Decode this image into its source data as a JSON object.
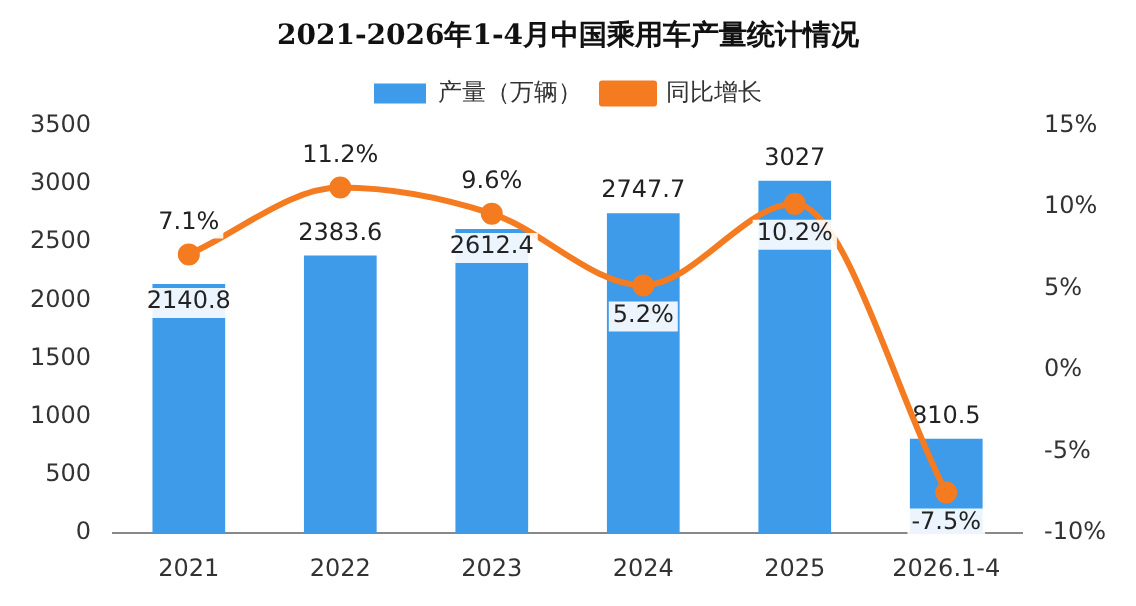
{
  "chart_data": {
    "type": "bar",
    "title": "2021-2026年1-4月中国乘用车产量统计情况",
    "categories": [
      "2021",
      "2022",
      "2023",
      "2024",
      "2025",
      "2026.1-4"
    ],
    "series": [
      {
        "name": "产量（万辆）",
        "color": "#3d9be9",
        "values": [
          2140.8,
          2383.6,
          2612.4,
          2747.7,
          3027,
          810.5
        ],
        "value_labels": [
          "2140.8",
          "2383.6",
          "2612.4",
          "2747.7",
          "3027",
          "810.5"
        ]
      },
      {
        "name": "同比增长",
        "type": "line",
        "axis": "y2",
        "color": "#f47b20",
        "values": [
          7.1,
          11.2,
          9.6,
          5.2,
          10.2,
          -7.5
        ],
        "value_labels": [
          "7.1%",
          "11.2%",
          "9.6%",
          "5.2%",
          "10.2%",
          "-7.5%"
        ]
      }
    ],
    "ylim": [
      0,
      3500
    ],
    "yticks": [
      0,
      500,
      1000,
      1500,
      2000,
      2500,
      3000,
      3500
    ],
    "y2lim": [
      -10,
      15
    ],
    "y2ticks": [
      {
        "value": -10,
        "label": "-10%"
      },
      {
        "value": -5,
        "label": "-5%"
      },
      {
        "value": 0,
        "label": "0%"
      },
      {
        "value": 5,
        "label": "5%"
      },
      {
        "value": 10,
        "label": "10%"
      },
      {
        "value": 15,
        "label": "15%"
      }
    ],
    "grid": false,
    "legend": "top",
    "marker": "circle",
    "line_style": "solid"
  }
}
